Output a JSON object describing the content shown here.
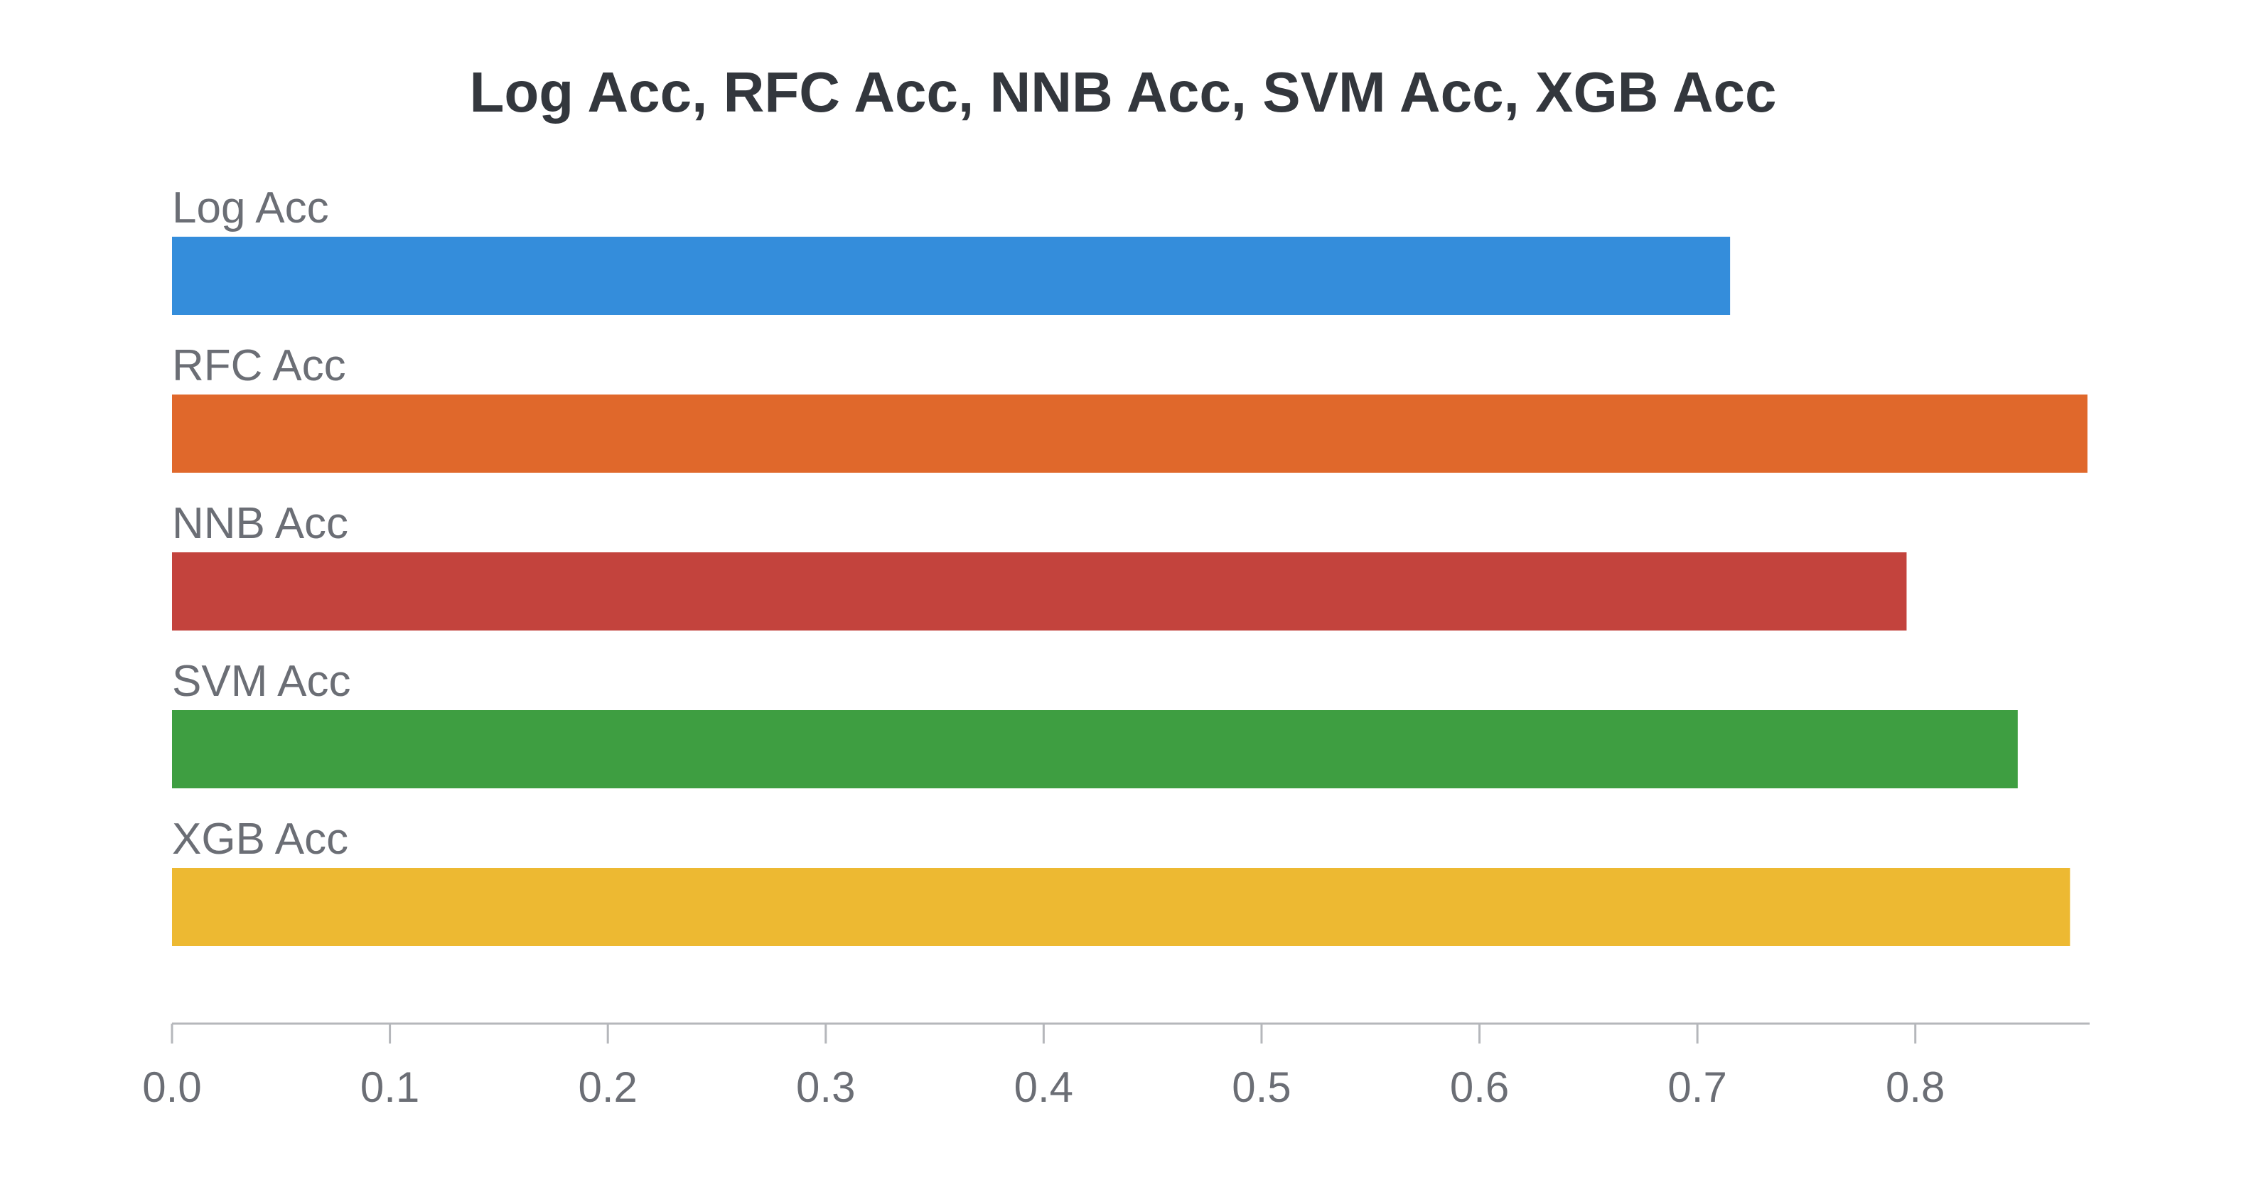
{
  "chart_data": {
    "type": "bar",
    "orientation": "horizontal",
    "title": "Log Acc, RFC Acc, NNB Acc, SVM Acc, XGB Acc",
    "xlabel": "",
    "ylabel": "",
    "xlim": [
      0,
      0.88
    ],
    "grid": false,
    "legend": "none",
    "categories": [
      "Log Acc",
      "RFC Acc",
      "NNB Acc",
      "SVM Acc",
      "XGB Acc"
    ],
    "values": [
      0.715,
      0.879,
      0.796,
      0.847,
      0.871
    ],
    "colors": [
      "#348ddb",
      "#e0682b",
      "#c3433d",
      "#3e9e41",
      "#edb932"
    ],
    "x_ticks": [
      {
        "value": 0.0,
        "label": "0.0"
      },
      {
        "value": 0.1,
        "label": "0.1"
      },
      {
        "value": 0.2,
        "label": "0.2"
      },
      {
        "value": 0.3,
        "label": "0.3"
      },
      {
        "value": 0.4,
        "label": "0.4"
      },
      {
        "value": 0.5,
        "label": "0.5"
      },
      {
        "value": 0.6,
        "label": "0.6"
      },
      {
        "value": 0.7,
        "label": "0.7"
      },
      {
        "value": 0.8,
        "label": "0.8"
      }
    ]
  }
}
